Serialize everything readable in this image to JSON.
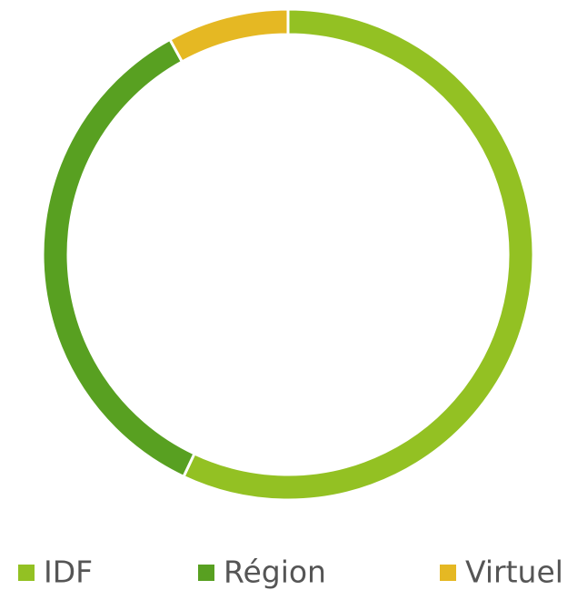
{
  "chart_data": {
    "type": "pie",
    "donut": true,
    "categories": [
      "IDF",
      "Région",
      "Virtuel"
    ],
    "values": [
      57,
      35,
      8
    ],
    "colors": [
      "#93c123",
      "#58a021",
      "#e5b823"
    ],
    "legend": "bottom"
  }
}
